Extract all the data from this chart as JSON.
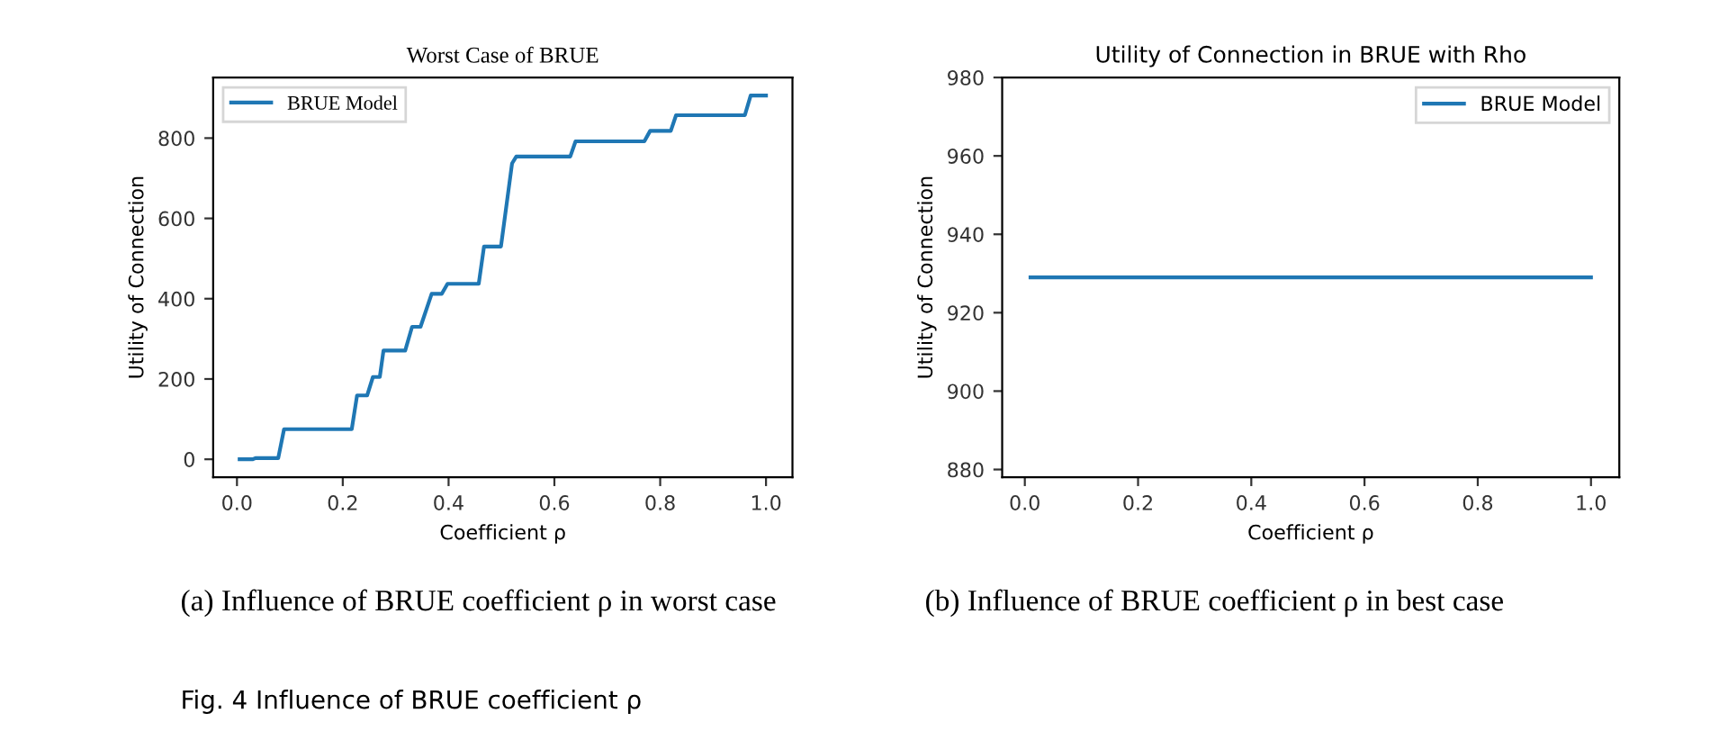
{
  "chart_data": [
    {
      "type": "line",
      "title": "Worst Case of BRUE",
      "xlabel": "Coefficient ρ",
      "ylabel": "Utility of Connection",
      "x": [
        0.005,
        0.03,
        0.035,
        0.078,
        0.089,
        0.217,
        0.227,
        0.246,
        0.257,
        0.27,
        0.277,
        0.318,
        0.331,
        0.347,
        0.368,
        0.387,
        0.398,
        0.457,
        0.467,
        0.499,
        0.52,
        0.528,
        0.63,
        0.64,
        0.77,
        0.781,
        0.82,
        0.83,
        0.96,
        0.971,
        1.0
      ],
      "series": [
        {
          "name": "BRUE Model",
          "color": "#1f77b4",
          "values": [
            0,
            0,
            3,
            3,
            75,
            75,
            159,
            159,
            205,
            205,
            271,
            271,
            330,
            330,
            412,
            412,
            437,
            437,
            530,
            530,
            737,
            754,
            754,
            792,
            792,
            818,
            818,
            857,
            857,
            906,
            906
          ]
        }
      ],
      "xlim": [
        -0.045,
        1.05
      ],
      "ylim": [
        -45,
        951
      ],
      "xticks": [
        {
          "value": 0,
          "label": "0.0"
        },
        {
          "value": 0.2,
          "label": "0.2"
        },
        {
          "value": 0.4,
          "label": "0.4"
        },
        {
          "value": 0.6,
          "label": "0.6"
        },
        {
          "value": 0.8,
          "label": "0.8"
        },
        {
          "value": 1,
          "label": "1.0"
        }
      ],
      "yticks": [
        0,
        200,
        400,
        600,
        800
      ],
      "legend": "top left",
      "grid": false,
      "annotations": [
        "(a) Influence of BRUE coefficient ρ in worst case",
        "Fig. 4 Influence of BRUE coefficient ρ"
      ]
    },
    {
      "type": "line",
      "title": "Utility of Connection in BRUE with Rho",
      "xlabel": "Coefficient ρ",
      "ylabel": "Utility of Connection",
      "x": [
        0.01,
        1.0
      ],
      "series": [
        {
          "name": "BRUE Model",
          "color": "#1f77b4",
          "values": [
            929,
            929
          ]
        }
      ],
      "xlim": [
        -0.04,
        1.05
      ],
      "ylim": [
        878,
        980
      ],
      "xticks": [
        {
          "value": 0,
          "label": "0.0"
        },
        {
          "value": 0.2,
          "label": "0.2"
        },
        {
          "value": 0.4,
          "label": "0.4"
        },
        {
          "value": 0.6,
          "label": "0.6"
        },
        {
          "value": 0.8,
          "label": "0.8"
        },
        {
          "value": 1,
          "label": "1.0"
        }
      ],
      "yticks": [
        880,
        900,
        920,
        940,
        960,
        980
      ],
      "legend": "top right",
      "grid": false,
      "annotations": [
        "(b) Influence of BRUE coefficient ρ in best case"
      ]
    }
  ]
}
